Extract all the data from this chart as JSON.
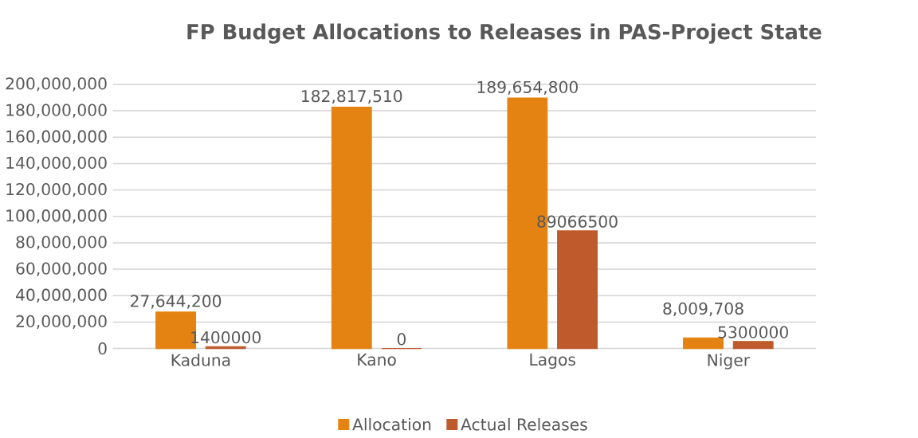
{
  "chart_data": {
    "type": "bar",
    "title": "FP Budget Allocations to Releases in PAS-Project State",
    "categories": [
      "Kaduna",
      "Kano",
      "Lagos",
      "Niger"
    ],
    "series": [
      {
        "name": "Allocation",
        "color": "#e48312",
        "values": [
          27644200,
          182817510,
          189654800,
          8009708
        ],
        "value_labels": [
          "27,644,200",
          "182,817,510",
          "189,654,800",
          "8,009,708"
        ]
      },
      {
        "name": "Actual Releases",
        "color": "#be5a2b",
        "values": [
          1400000,
          0,
          89066500,
          5300000
        ],
        "value_labels": [
          "1400000",
          "0",
          "89066500",
          "5300000"
        ]
      }
    ],
    "ylim": [
      0,
      200000000
    ],
    "yticks": [
      {
        "value": 0,
        "label": "0"
      },
      {
        "value": 20000000,
        "label": "20,000,000"
      },
      {
        "value": 40000000,
        "label": "40,000,000"
      },
      {
        "value": 60000000,
        "label": "60,000,000"
      },
      {
        "value": 80000000,
        "label": "80,000,000"
      },
      {
        "value": 100000000,
        "label": "100,000,000"
      },
      {
        "value": 120000000,
        "label": "120,000,000"
      },
      {
        "value": 140000000,
        "label": "140,000,000"
      },
      {
        "value": 160000000,
        "label": "160,000,000"
      },
      {
        "value": 180000000,
        "label": "180,000,000"
      },
      {
        "value": 200000000,
        "label": "200,000,000"
      }
    ],
    "grid": "y",
    "legend": "bottom"
  }
}
